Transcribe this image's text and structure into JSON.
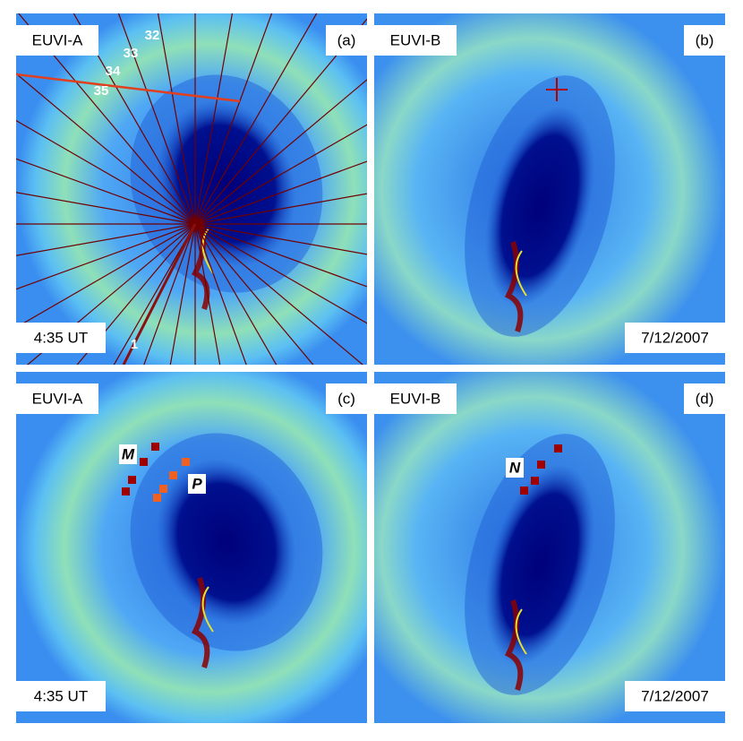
{
  "panels": [
    {
      "instrument": "EUVI-A",
      "tag": "(a)",
      "footer": "4:35 UT",
      "sector_labels": [
        "32",
        "33",
        "34",
        "35",
        "1"
      ]
    },
    {
      "instrument": "EUVI-B",
      "tag": "(b)",
      "footer": "7/12/2007"
    },
    {
      "instrument": "EUVI-A",
      "tag": "(c)",
      "footer": "4:35 UT",
      "markers": [
        "M",
        "P"
      ]
    },
    {
      "instrument": "EUVI-B",
      "tag": "(d)",
      "footer": "7/12/2007",
      "markers": [
        "N"
      ]
    }
  ]
}
